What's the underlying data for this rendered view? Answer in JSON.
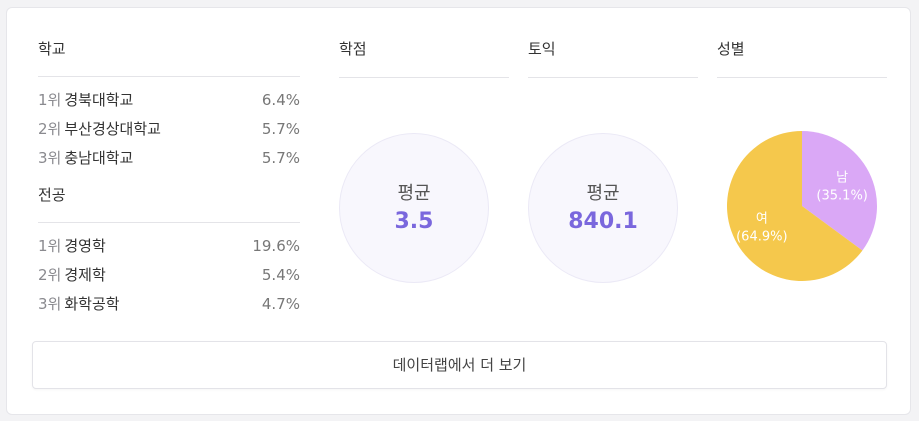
{
  "school": {
    "title": "학교",
    "items": [
      {
        "rank": "1위",
        "name": "경북대학교",
        "pct": "6.4%"
      },
      {
        "rank": "2위",
        "name": "부산경상대학교",
        "pct": "5.7%"
      },
      {
        "rank": "3위",
        "name": "충남대학교",
        "pct": "5.7%"
      }
    ]
  },
  "major": {
    "title": "전공",
    "items": [
      {
        "rank": "1위",
        "name": "경영학",
        "pct": "19.6%"
      },
      {
        "rank": "2위",
        "name": "경제학",
        "pct": "5.4%"
      },
      {
        "rank": "3위",
        "name": "화학공학",
        "pct": "4.7%"
      }
    ]
  },
  "gpa": {
    "title": "학점",
    "avg_label": "평균",
    "value": "3.5"
  },
  "toeic": {
    "title": "토익",
    "avg_label": "평균",
    "value": "840.1"
  },
  "gender": {
    "title": "성별"
  },
  "chart_data": {
    "type": "pie",
    "categories": [
      "남",
      "여"
    ],
    "values": [
      35.1,
      64.9
    ],
    "labels": [
      "(35.1%)",
      "(64.9%)"
    ],
    "colors": [
      "#daa8f6",
      "#f5c84c"
    ]
  },
  "more_button": {
    "label": "데이터랩에서 더 보기"
  }
}
